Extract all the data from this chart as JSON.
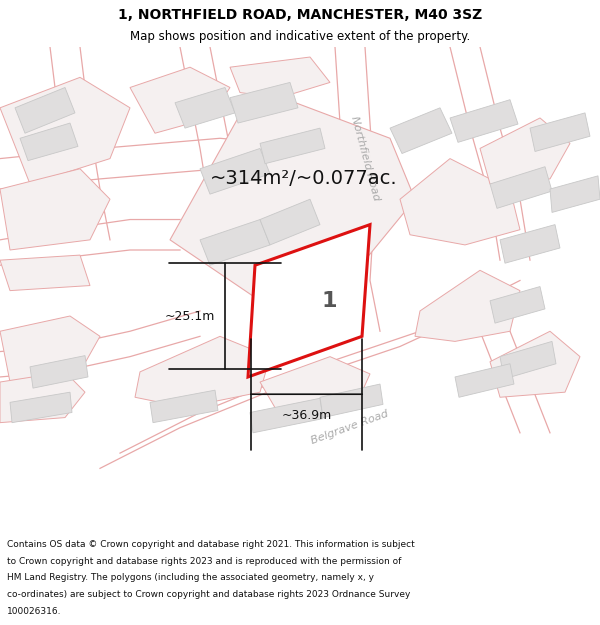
{
  "title_line1": "1, NORTHFIELD ROAD, MANCHESTER, M40 3SZ",
  "title_line2": "Map shows position and indicative extent of the property.",
  "footer_lines": [
    "Contains OS data © Crown copyright and database right 2021. This information is subject",
    "to Crown copyright and database rights 2023 and is reproduced with the permission of",
    "HM Land Registry. The polygons (including the associated geometry, namely x, y",
    "co-ordinates) are subject to Crown copyright and database rights 2023 Ordnance Survey",
    "100026316."
  ],
  "map_bg": "#f8f6f6",
  "building_fill": "#e0dede",
  "building_edge": "#c8c8c8",
  "parcel_edge": "#e8a8a8",
  "parcel_fill": "#f5f0f0",
  "highlight_fill": "#ffffff",
  "highlight_edge": "#dd1111",
  "area_text": "~314m²/~0.077ac.",
  "dim_width": "~36.9m",
  "dim_height": "~25.1m",
  "label_number": "1",
  "road_label_northfield": "Northfield Road",
  "road_label_belgrave": "Belgrave Road",
  "title_fontsize": 10,
  "subtitle_fontsize": 8.5,
  "footer_fontsize": 6.5,
  "area_fontsize": 14,
  "dim_fontsize": 9,
  "road_label_fontsize": 8,
  "number_fontsize": 16
}
